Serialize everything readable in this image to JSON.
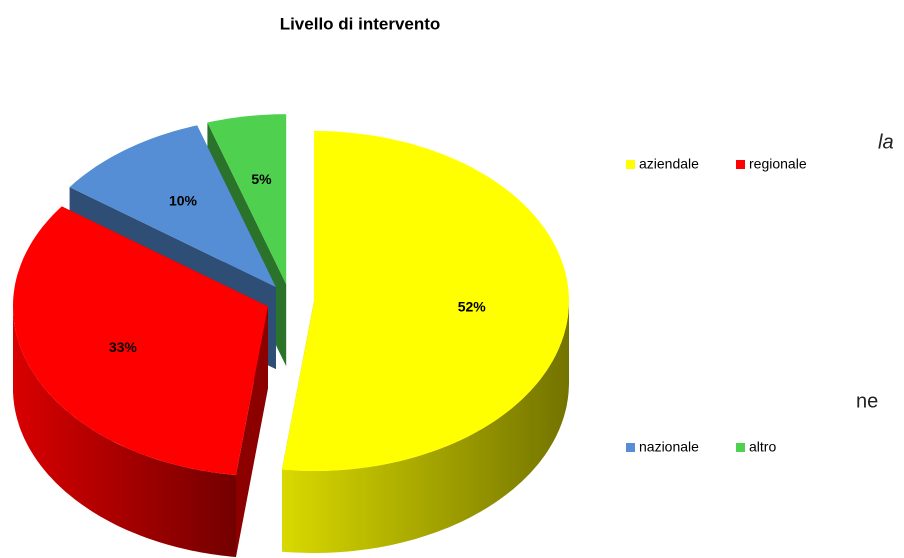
{
  "chart_data": {
    "type": "pie3d",
    "title": "Livello di intervento",
    "categories": [
      "aziendale",
      "regionale",
      "nazionale",
      "altro"
    ],
    "values": [
      52,
      33,
      10,
      5
    ],
    "value_labels": [
      "52%",
      "33%",
      "10%",
      "5%"
    ],
    "colors": [
      "#ffff00",
      "#ff0000",
      "#558ed5",
      "#4fd14f"
    ],
    "annotations": [
      "la",
      "ne"
    ]
  }
}
